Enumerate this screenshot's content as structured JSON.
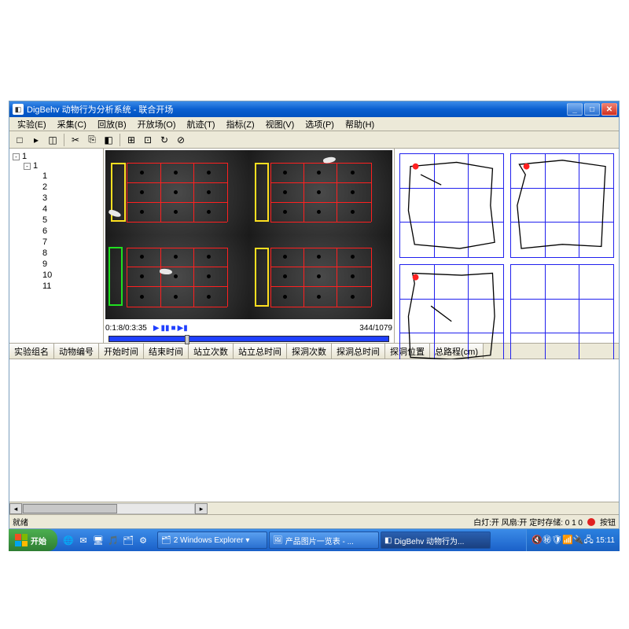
{
  "window": {
    "title": "DigBehv 动物行为分析系统 - 联合开场",
    "icon_char": "◧"
  },
  "menu": [
    "实验(E)",
    "采集(C)",
    "回放(B)",
    "开放场(O)",
    "航迹(T)",
    "指标(Z)",
    "视图(V)",
    "选项(P)",
    "帮助(H)"
  ],
  "toolbar_icons": [
    "□",
    "▸",
    "◫",
    "✂",
    "⎘",
    "◧",
    "⊞",
    "⊡",
    "↻",
    "⊘"
  ],
  "tree": {
    "root": "1",
    "sub": "1",
    "leaves": [
      "1",
      "2",
      "3",
      "4",
      "5",
      "6",
      "7",
      "8",
      "9",
      "10",
      "11"
    ]
  },
  "video": {
    "time": "0:1:8/0:3:35",
    "frames": "344/1079",
    "play_icons": [
      "▶",
      "▮▮",
      "■",
      "▶▮"
    ]
  },
  "track_paths": [
    "M10 12 L55 8 L90 14 L88 50 L92 86 L58 92 L14 88 L8 55 Z M20 20 L40 30",
    "M8 10 L50 6 L92 12 L90 48 L88 90 L50 88 L10 92 L6 50 L14 20 Z",
    "M12 8 L60 10 L90 8 L92 50 L88 88 L50 92 L10 90 L8 50 L14 18 Z M30 40 L50 55",
    ""
  ],
  "columns": [
    "实验组名",
    "动物编号",
    "开始时间",
    "结束时间",
    "站立次数",
    "站立总时间",
    "探洞次数",
    "探洞总时间",
    "探洞位置",
    "总路程(cm)"
  ],
  "status": {
    "left": "就绪",
    "right": "白灯:开  风扇:开  定时存储: 0 1 0",
    "end": "按钮"
  },
  "taskbar": {
    "start": "开始",
    "tasks": [
      {
        "icon": "🗂",
        "label": "2 Windows Explorer ▾"
      },
      {
        "icon": "🖼",
        "label": "产品图片一览表 - ..."
      },
      {
        "icon": "◧",
        "label": "DigBehv 动物行为..."
      }
    ],
    "tray_icons": [
      "🔇",
      "㊙",
      "🛡",
      "📶",
      "🔌",
      "🖧"
    ],
    "clock": "15:11"
  },
  "colors": {
    "grid_red": "#ff2020",
    "grid_blue": "#2020ee",
    "titlebar": "#0a5fd0"
  }
}
